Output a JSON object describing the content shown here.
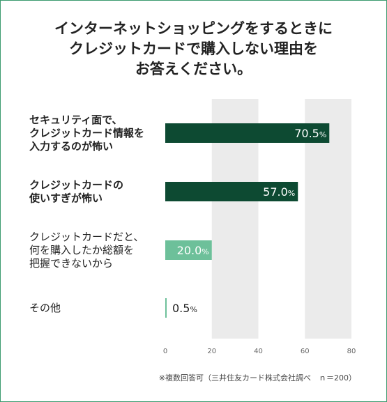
{
  "title_lines": [
    "インターネットショッピングをするときに",
    "クレジットカードで購入しない理由を",
    "お答えください。"
  ],
  "chart_data": {
    "type": "bar",
    "orientation": "horizontal",
    "categories": [
      [
        "セキュリティ面で、",
        "クレジットカード情報を",
        "入力するのが怖い"
      ],
      [
        "クレジットカードの",
        "使いすぎが怖い"
      ],
      [
        "クレジットカードだと、",
        "何を購入したか総額を",
        "把握できないから"
      ],
      [
        "その他"
      ]
    ],
    "values": [
      70.5,
      57.0,
      20.0,
      0.5
    ],
    "value_labels": [
      "70.5",
      "57.0",
      "20.0",
      "0.5"
    ],
    "unit": "%",
    "xlim": [
      0,
      80
    ],
    "xticks": [
      "0",
      "20",
      "40",
      "60",
      "80"
    ],
    "colors": {
      "dark": "#0d4a32",
      "light": "#6dc09a",
      "band": "#ebebeb"
    }
  },
  "footnote": "※複数回答可（三井住友カード株式会社調べ　ｎ＝200）"
}
